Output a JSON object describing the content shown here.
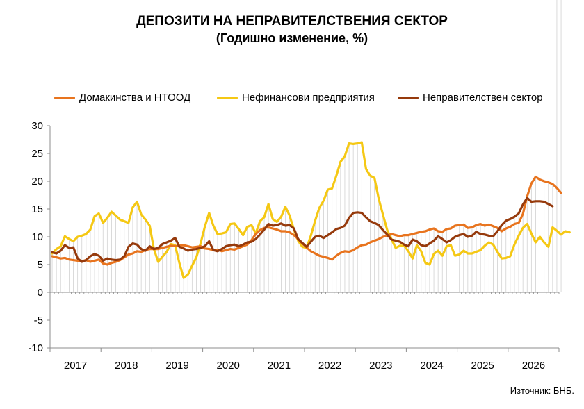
{
  "title": "ДЕПОЗИТИ НА НЕПРАВИТЕЛСТВЕНИЯ СЕКТОР",
  "subtitle": "(Годишно изменение, %)",
  "source": "Източник: БНБ.",
  "chart_data": {
    "type": "line",
    "ylim": [
      -10,
      30
    ],
    "yticks": [
      30,
      25,
      20,
      15,
      10,
      5,
      0,
      -5,
      -10
    ],
    "x_start": "2017-01",
    "years": [
      "2017",
      "2018",
      "2019",
      "2020",
      "2021",
      "2022",
      "2023",
      "2024",
      "2025",
      "2026"
    ],
    "series": [
      {
        "name": "Домакинства и НТООД",
        "color": "#E8741E",
        "values": [
          6.5,
          6.3,
          6.1,
          6.2,
          5.9,
          5.8,
          5.7,
          5.6,
          5.8,
          5.5,
          5.7,
          5.9,
          5.2,
          5.0,
          5.3,
          5.5,
          5.8,
          6.3,
          6.8,
          7.0,
          7.4,
          7.3,
          7.6,
          7.8,
          7.8,
          7.8,
          8.0,
          8.2,
          8.4,
          8.3,
          8.4,
          8.5,
          8.3,
          8.1,
          8.2,
          8.3,
          7.9,
          7.8,
          7.6,
          7.7,
          7.4,
          7.6,
          7.8,
          7.7,
          8.0,
          8.3,
          8.6,
          9.4,
          10.5,
          11.2,
          11.6,
          11.7,
          11.5,
          11.3,
          11.0,
          11.0,
          10.8,
          10.3,
          9.6,
          8.8,
          8.1,
          7.4,
          7.0,
          6.6,
          6.4,
          6.2,
          5.9,
          6.6,
          7.1,
          7.4,
          7.3,
          7.6,
          8.1,
          8.5,
          8.6,
          9.0,
          9.3,
          9.6,
          10.0,
          10.2,
          10.5,
          10.3,
          10.1,
          10.3,
          10.3,
          10.5,
          10.7,
          10.9,
          11.0,
          11.3,
          11.5,
          11.0,
          10.9,
          11.4,
          11.5,
          12.0,
          12.1,
          12.2,
          11.6,
          11.7,
          12.1,
          12.3,
          12.0,
          12.2,
          11.9,
          11.6,
          11.0,
          11.5,
          11.8,
          12.3,
          12.5,
          14.1,
          17.3,
          19.6,
          20.8,
          20.3,
          20.0,
          19.8,
          19.5,
          18.8,
          17.9
        ]
      },
      {
        "name": "Нефинансови предприятия",
        "color": "#F5C814",
        "values": [
          7.0,
          7.8,
          8.3,
          10.1,
          9.6,
          9.2,
          10.0,
          10.2,
          10.5,
          11.3,
          13.7,
          14.2,
          12.5,
          13.4,
          14.5,
          13.8,
          13.1,
          12.8,
          12.5,
          15.3,
          16.3,
          14.0,
          13.1,
          12.0,
          7.8,
          5.5,
          6.4,
          7.3,
          8.7,
          8.5,
          5.3,
          2.6,
          3.2,
          4.8,
          6.3,
          8.8,
          11.8,
          14.3,
          12.0,
          10.5,
          10.6,
          10.8,
          12.3,
          12.4,
          11.4,
          10.3,
          11.8,
          12.1,
          10.6,
          12.8,
          13.5,
          15.9,
          13.2,
          12.7,
          13.6,
          15.4,
          13.8,
          11.3,
          9.3,
          8.2,
          8.0,
          10.2,
          12.9,
          15.2,
          16.5,
          18.5,
          18.7,
          21.0,
          23.5,
          24.5,
          26.8,
          26.7,
          26.8,
          27.0,
          22.2,
          21.0,
          20.6,
          16.8,
          14.0,
          11.2,
          9.6,
          8.0,
          8.4,
          8.4,
          7.4,
          6.1,
          8.5,
          7.4,
          5.3,
          5.0,
          6.9,
          7.5,
          6.6,
          8.3,
          8.5,
          6.6,
          6.8,
          7.5,
          7.0,
          7.0,
          7.3,
          7.6,
          8.4,
          9.0,
          8.6,
          7.3,
          6.1,
          6.2,
          6.5,
          8.6,
          10.2,
          11.6,
          12.3,
          10.6,
          9.0,
          10.0,
          9.0,
          8.2,
          11.7,
          11.1,
          10.4,
          11.0,
          10.8
        ]
      },
      {
        "name": "Неправителствен сектор",
        "color": "#963A0C",
        "values": [
          7.2,
          7.0,
          7.5,
          8.5,
          8.0,
          8.1,
          6.1,
          5.5,
          5.8,
          6.5,
          6.9,
          6.6,
          5.7,
          6.1,
          5.9,
          5.8,
          5.9,
          6.5,
          8.2,
          8.8,
          8.6,
          7.8,
          7.5,
          8.3,
          7.8,
          8.0,
          8.7,
          9.0,
          9.3,
          9.8,
          8.2,
          7.9,
          7.5,
          7.7,
          7.8,
          8.0,
          8.3,
          9.2,
          7.6,
          7.4,
          7.8,
          8.3,
          8.5,
          8.6,
          8.3,
          8.6,
          9.0,
          9.1,
          9.6,
          10.4,
          11.3,
          12.3,
          12.0,
          12.1,
          12.4,
          12.0,
          12.1,
          11.5,
          9.6,
          8.9,
          8.2,
          9.1,
          10.0,
          10.2,
          9.8,
          10.3,
          10.8,
          11.4,
          11.6,
          12.0,
          13.4,
          14.3,
          14.4,
          14.3,
          13.5,
          12.8,
          12.5,
          12.1,
          11.2,
          10.4,
          9.5,
          9.3,
          9.1,
          8.6,
          8.3,
          9.5,
          9.2,
          8.5,
          8.3,
          8.8,
          9.3,
          10.1,
          9.6,
          9.0,
          9.4,
          10.0,
          10.3,
          10.5,
          10.0,
          10.2,
          10.9,
          10.5,
          10.4,
          10.2,
          10.1,
          11.0,
          12.1,
          12.9,
          13.2,
          13.6,
          14.2,
          15.8,
          17.0,
          16.3,
          16.4,
          16.4,
          16.3,
          15.9,
          15.5
        ]
      }
    ]
  }
}
